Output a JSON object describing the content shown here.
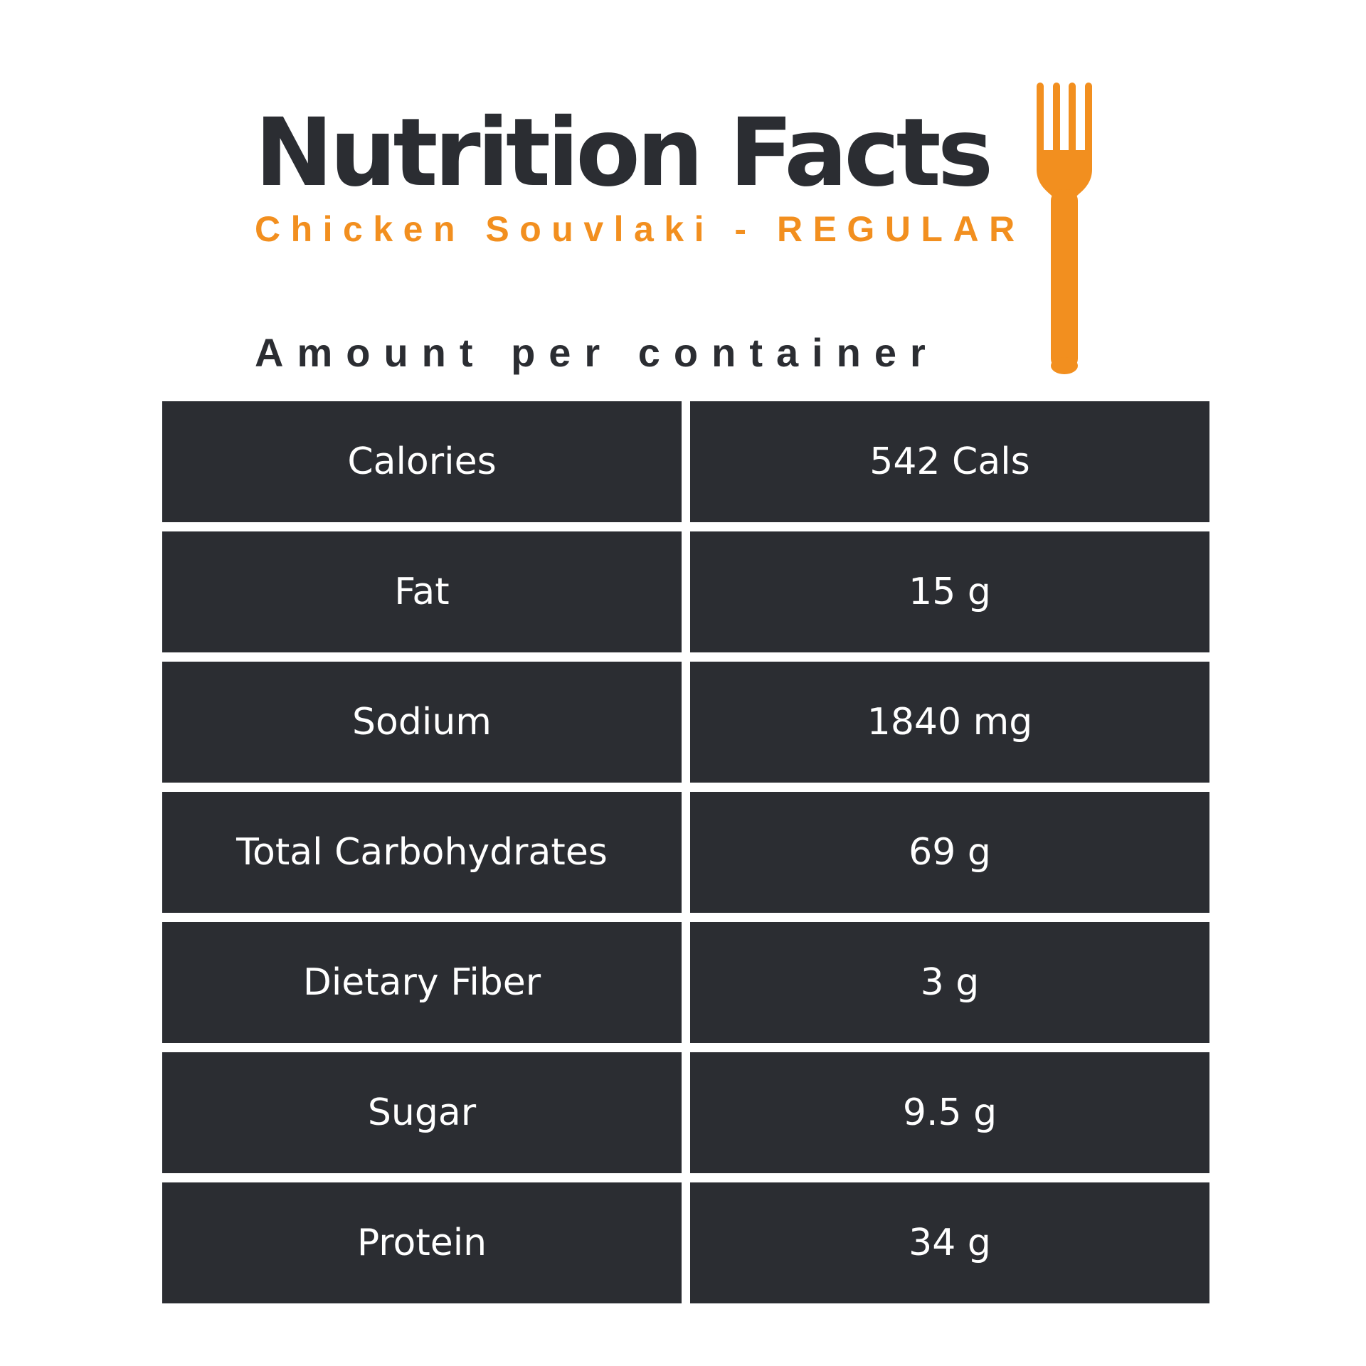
{
  "header": {
    "title": "Nutrition Facts",
    "subtitle": "Chicken Souvlaki - REGULAR",
    "amount_label": "Amount per container",
    "icon": "fork-icon"
  },
  "colors": {
    "dark": "#2b2d32",
    "accent": "#f28f1f",
    "background": "#ffffff",
    "cell_text": "#ffffff"
  },
  "nutrients": [
    {
      "label": "Calories",
      "value": "542 Cals"
    },
    {
      "label": "Fat",
      "value": "15 g"
    },
    {
      "label": "Sodium",
      "value": "1840 mg"
    },
    {
      "label": "Total Carbohydrates",
      "value": "69 g"
    },
    {
      "label": "Dietary Fiber",
      "value": "3 g"
    },
    {
      "label": "Sugar",
      "value": "9.5 g"
    },
    {
      "label": "Protein",
      "value": "34 g"
    }
  ]
}
